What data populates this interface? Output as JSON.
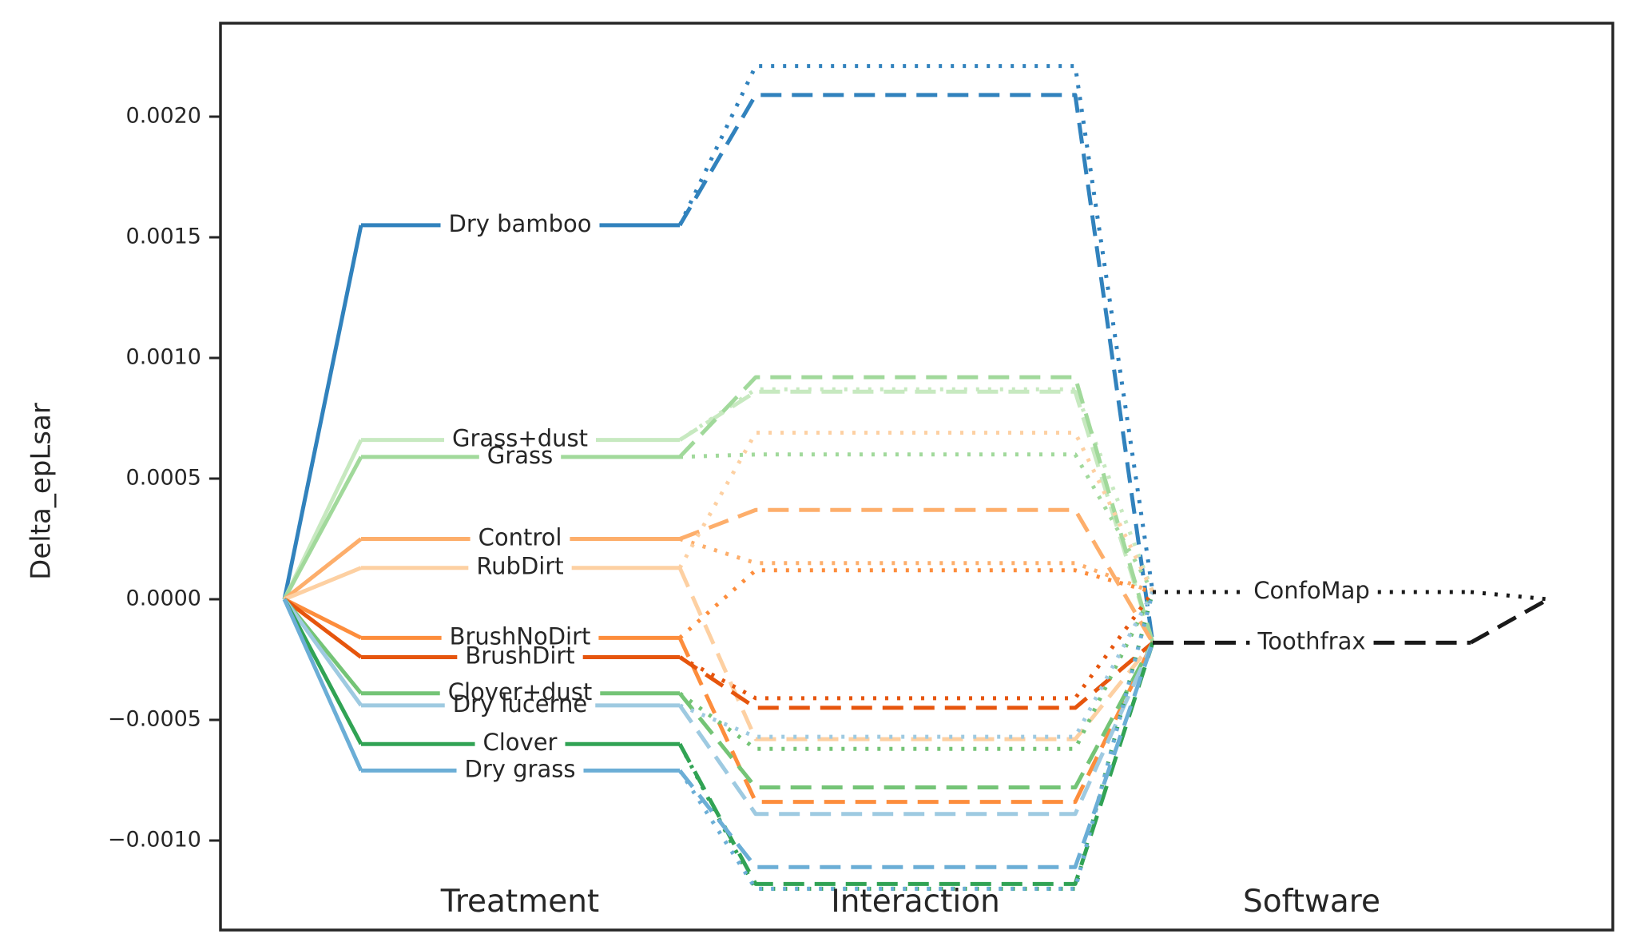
{
  "chart_data": {
    "type": "line",
    "ylabel": "Delta_epLsar",
    "xlabel": "",
    "ylim": [
      -0.00136,
      0.00241
    ],
    "yticks": [
      -0.001,
      -0.0005,
      0.0,
      0.0005,
      0.001,
      0.0015,
      0.002
    ],
    "ytick_labels": [
      "−0.0010",
      "−0.0005",
      "0.0000",
      "0.0005",
      "0.0010",
      "0.0015",
      "0.0020"
    ],
    "grid": false,
    "legend": "none",
    "group_labels": [
      "Treatment",
      "Interaction",
      "Software"
    ],
    "software": [
      {
        "name": "ConfoMap",
        "value": 3e-05,
        "style": "dotted"
      },
      {
        "name": "Toothfrax",
        "value": -0.00018,
        "style": "dashed"
      }
    ],
    "treatments": [
      {
        "name": "Dry bamboo",
        "color": "#3182bd",
        "value": 0.00155,
        "interaction": {
          "ConfoMap": 0.00221,
          "Toothfrax": 0.00209
        }
      },
      {
        "name": "Grass+dust",
        "color": "#c7e9c0",
        "value": 0.00066,
        "interaction": {
          "ConfoMap": 0.00087,
          "Toothfrax": 0.00086
        }
      },
      {
        "name": "Grass",
        "color": "#a1d99b",
        "value": 0.00059,
        "interaction": {
          "ConfoMap": 0.0006,
          "Toothfrax": 0.00092
        }
      },
      {
        "name": "Control",
        "color": "#fdae6b",
        "value": 0.00025,
        "interaction": {
          "ConfoMap": 0.00015,
          "Toothfrax": 0.00037
        }
      },
      {
        "name": "RubDirt",
        "color": "#fdd0a2",
        "value": 0.00013,
        "interaction": {
          "ConfoMap": 0.00069,
          "Toothfrax": -0.00058
        }
      },
      {
        "name": "BrushNoDirt",
        "color": "#fd8d3c",
        "value": -0.00016,
        "interaction": {
          "ConfoMap": 0.00012,
          "Toothfrax": -0.00084
        }
      },
      {
        "name": "BrushDirt",
        "color": "#e6550d",
        "value": -0.00024,
        "interaction": {
          "ConfoMap": -0.00041,
          "Toothfrax": -0.00045
        }
      },
      {
        "name": "Clover+dust",
        "color": "#74c476",
        "value": -0.00039,
        "interaction": {
          "ConfoMap": -0.00062,
          "Toothfrax": -0.00078
        }
      },
      {
        "name": "Dry lucerne",
        "color": "#9ecae1",
        "value": -0.00044,
        "interaction": {
          "ConfoMap": -0.00057,
          "Toothfrax": -0.00089
        }
      },
      {
        "name": "Clover",
        "color": "#31a354",
        "value": -0.0006,
        "interaction": {
          "ConfoMap": -0.0012,
          "Toothfrax": -0.00118
        }
      },
      {
        "name": "Dry grass",
        "color": "#6baed6",
        "value": -0.00071,
        "interaction": {
          "ConfoMap": -0.0012,
          "Toothfrax": -0.00111
        }
      }
    ]
  }
}
